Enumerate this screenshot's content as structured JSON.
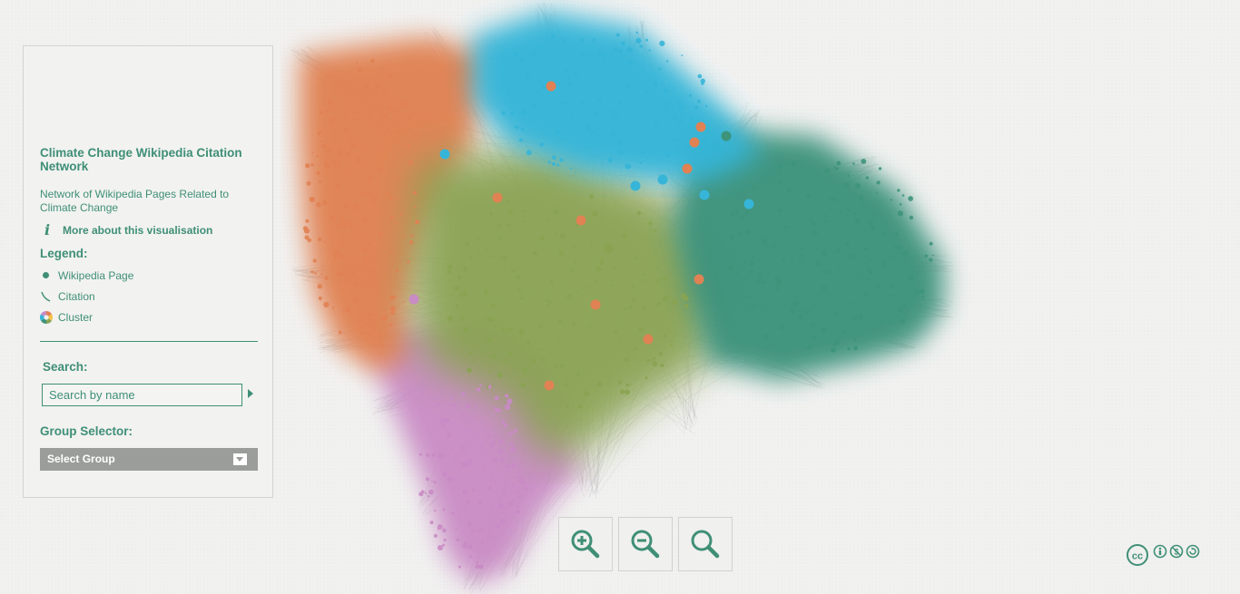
{
  "sidebar": {
    "title": "Climate Change Wikipedia Citation Network",
    "subtitle": "Network of Wikipedia Pages Related to Climate Change",
    "more_link": "More about this visualisation",
    "legend_heading": "Legend:",
    "legend": [
      {
        "label": "Wikipedia Page",
        "icon": "dot-icon"
      },
      {
        "label": "Citation",
        "icon": "curve-icon"
      },
      {
        "label": "Cluster",
        "icon": "color-wheel-icon"
      }
    ],
    "search_heading": "Search:",
    "search_placeholder": "Search by name",
    "group_heading": "Group Selector:",
    "group_select_value": "Select Group"
  },
  "zoom_controls": [
    {
      "name": "zoom-in",
      "icon": "zoom-in-icon"
    },
    {
      "name": "zoom-out",
      "icon": "zoom-out-icon"
    },
    {
      "name": "zoom-reset",
      "icon": "search-icon"
    }
  ],
  "license_icon": "creative-commons-by-nc-sa-icon",
  "colors": {
    "accent": "#3f8f76",
    "cluster_orange": "#e08253",
    "cluster_blue": "#36b5d8",
    "cluster_green": "#3e937b",
    "cluster_olive": "#8aa352",
    "cluster_pink": "#c98bc4",
    "edge_gray": "#bcbcbc"
  }
}
